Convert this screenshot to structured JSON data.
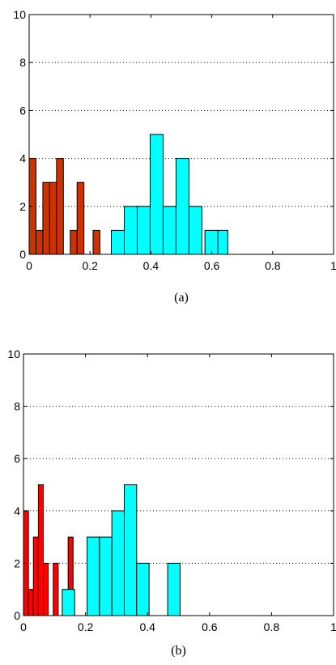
{
  "chart_data": [
    {
      "type": "bar",
      "panel_label": "(a)",
      "xlim": [
        0,
        1
      ],
      "ylim": [
        0,
        10
      ],
      "x_ticks": [
        "0",
        "0.2",
        "0.4",
        "0.6",
        "0.8",
        "1"
      ],
      "y_ticks": [
        "0",
        "2",
        "4",
        "6",
        "8",
        "10"
      ],
      "grid": "horizontal dotted",
      "bin_width": 0.0225,
      "series": [
        {
          "color": "#cc3300",
          "bin_starts": [
            0.0,
            0.0225,
            0.045,
            0.0675,
            0.09,
            0.1125,
            0.135,
            0.1575,
            0.18
          ],
          "values": [
            4,
            1,
            3,
            3,
            4,
            0,
            1,
            3,
            0
          ]
        },
        {
          "color": "#cc3300",
          "bin_starts": [
            0.21
          ],
          "values": [
            1
          ]
        },
        {
          "color": "#00ffff",
          "bin_starts": [
            0.27,
            0.3125,
            0.355,
            0.3975,
            0.44,
            0.4825,
            0.525,
            0.5675,
            0.61
          ],
          "bin_width": 0.0425,
          "values": [
            1,
            2,
            2,
            5,
            2,
            4,
            2,
            0,
            1
          ]
        },
        {
          "color": "#00ffff",
          "bin_starts": [
            0.5775
          ],
          "bin_width": 0.0425,
          "values": [
            1
          ]
        }
      ]
    },
    {
      "type": "bar",
      "panel_label": "(b)",
      "xlim": [
        0,
        1
      ],
      "ylim": [
        0,
        10
      ],
      "x_ticks": [
        "0",
        "0.2",
        "0.4",
        "0.6",
        "0.8",
        "1"
      ],
      "y_ticks": [
        "0",
        "2",
        "4",
        "6",
        "8",
        "10"
      ],
      "grid": "horizontal dotted",
      "series": [
        {
          "color": "#ff0000",
          "bars": [
            {
              "x0": 0.0,
              "x1": 0.016,
              "value": 4
            },
            {
              "x0": 0.016,
              "x1": 0.032,
              "value": 1
            },
            {
              "x0": 0.032,
              "x1": 0.048,
              "value": 3
            },
            {
              "x0": 0.048,
              "x1": 0.064,
              "value": 5
            },
            {
              "x0": 0.064,
              "x1": 0.08,
              "value": 2
            },
            {
              "x0": 0.096,
              "x1": 0.112,
              "value": 2
            },
            {
              "x0": 0.144,
              "x1": 0.16,
              "value": 3
            }
          ]
        },
        {
          "color": "#00ffff",
          "bars": [
            {
              "x0": 0.125,
              "x1": 0.165,
              "value": 1
            },
            {
              "x0": 0.205,
              "x1": 0.245,
              "value": 3
            },
            {
              "x0": 0.245,
              "x1": 0.285,
              "value": 3
            },
            {
              "x0": 0.285,
              "x1": 0.325,
              "value": 4
            },
            {
              "x0": 0.325,
              "x1": 0.365,
              "value": 5
            },
            {
              "x0": 0.365,
              "x1": 0.405,
              "value": 2
            },
            {
              "x0": 0.465,
              "x1": 0.505,
              "value": 2
            }
          ]
        }
      ]
    }
  ]
}
